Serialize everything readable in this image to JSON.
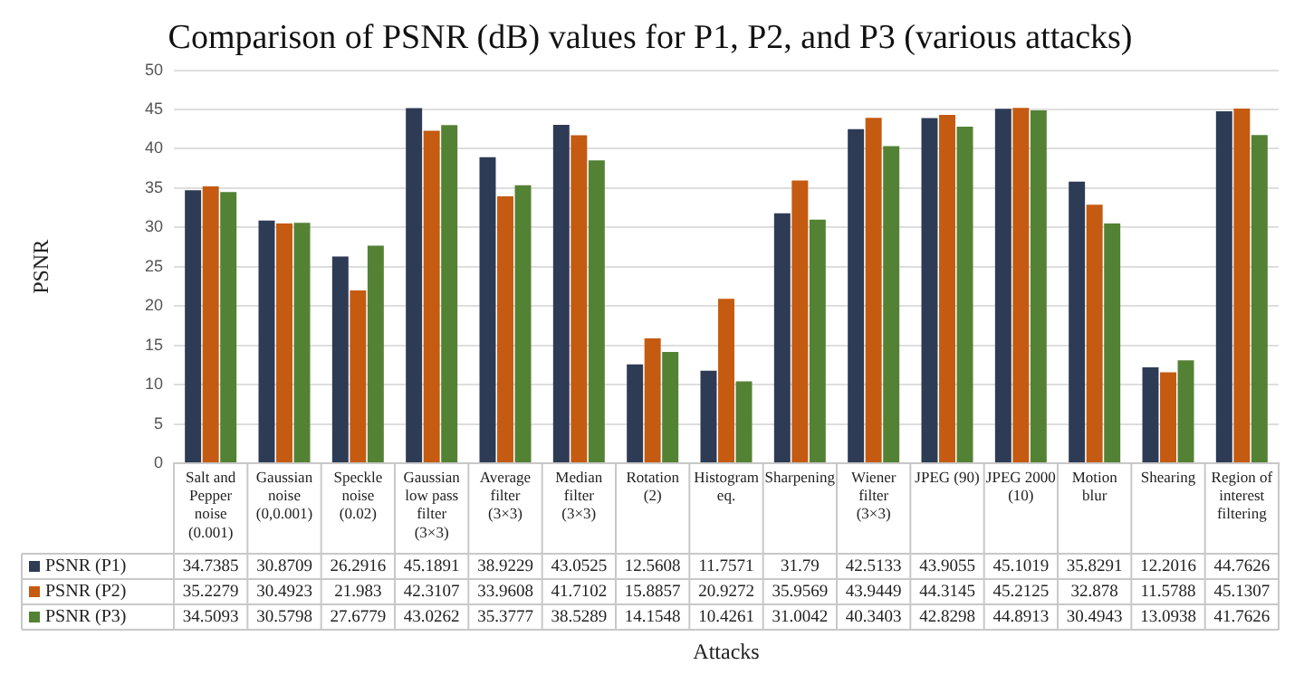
{
  "chart_data": {
    "type": "bar",
    "title": "Comparison of PSNR (dB) values for P1, P2, and P3 (various attacks)",
    "xlabel": "Attacks",
    "ylabel": "PSNR",
    "categories": [
      "Salt and Pepper noise (0.001)",
      "Gaussian noise (0,0.001)",
      "Speckle noise (0.02)",
      "Gaussian low pass filter (3×3)",
      "Average filter (3×3)",
      "Median filter (3×3)",
      "Rotation (2)",
      "Histogram eq.",
      "Sharpening",
      "Wiener filter (3×3)",
      "JPEG (90)",
      "JPEG 2000 (10)",
      "Motion blur",
      "Shearing",
      "Region of interest filtering"
    ],
    "series": [
      {
        "name": "PSNR (P1)",
        "color": "#2e3b55",
        "values": [
          34.7385,
          30.8709,
          26.2916,
          45.1891,
          38.9229,
          43.0525,
          12.5608,
          11.7571,
          31.79,
          42.5133,
          43.9055,
          45.1019,
          35.8291,
          12.2016,
          44.7626
        ]
      },
      {
        "name": "PSNR (P2)",
        "color": "#c55a11",
        "values": [
          35.2279,
          30.4923,
          21.983,
          42.3107,
          33.9608,
          41.7102,
          15.8857,
          20.9272,
          35.9569,
          43.9449,
          44.3145,
          45.2125,
          32.878,
          11.5788,
          45.1307
        ]
      },
      {
        "name": "PSNR (P3)",
        "color": "#548235",
        "values": [
          34.5093,
          30.5798,
          27.6779,
          43.0262,
          35.3777,
          38.5289,
          14.1548,
          10.4261,
          31.0042,
          40.3403,
          42.8298,
          44.8913,
          30.4943,
          13.0938,
          41.7626
        ]
      }
    ],
    "ylim": [
      0,
      50
    ],
    "yticks": [
      0,
      5,
      10,
      15,
      20,
      25,
      30,
      35,
      40,
      45,
      50
    ],
    "grid": "y",
    "legend": "bottom left",
    "data_labels": true
  }
}
